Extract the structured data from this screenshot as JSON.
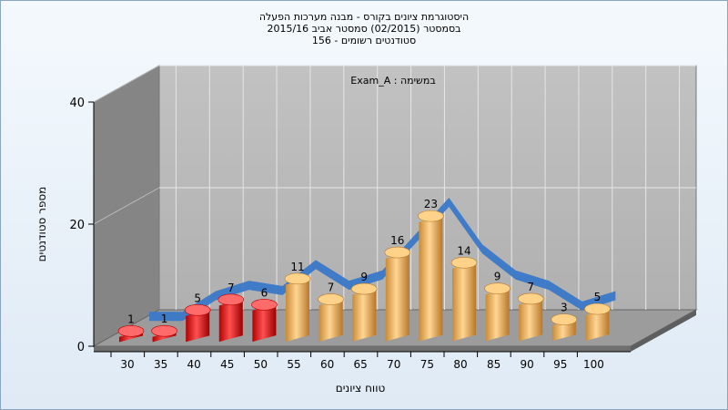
{
  "titles": {
    "line1": "היסטוגרמת ציונים בקורס - מבנה מערכות הפעלה",
    "line2": "בסמסטר  (02/2015)  סמסטר אביב 2015/16",
    "line3": "סטודנטים רשומים - 156"
  },
  "chart_data": {
    "type": "bar",
    "subtitle": "Exam_A : במשימה",
    "xlabel": "טווח ציונים",
    "ylabel": "מספר סטודנטים",
    "categories": [
      "30",
      "35",
      "40",
      "45",
      "50",
      "55",
      "60",
      "65",
      "70",
      "75",
      "80",
      "85",
      "90",
      "95",
      "100"
    ],
    "values": [
      1,
      1,
      5,
      7,
      6,
      11,
      7,
      9,
      16,
      23,
      14,
      9,
      7,
      3,
      5
    ],
    "yticks": [
      "0",
      "20",
      "40"
    ],
    "ylim": [
      0,
      40
    ],
    "fail_color": "#e02020",
    "pass_color": "#f0b055",
    "curve_color": "#3a78c8",
    "grid": true
  }
}
